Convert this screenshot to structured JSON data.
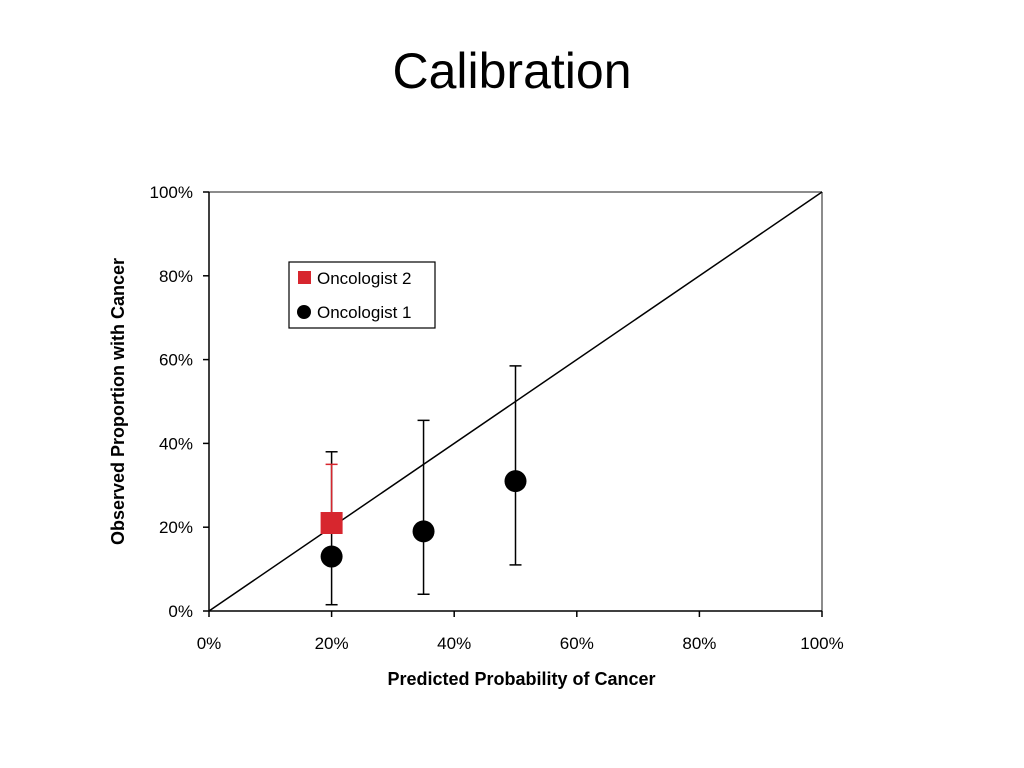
{
  "title": "Calibration",
  "chart_data": {
    "type": "scatter",
    "title": "Calibration",
    "xlabel": "Predicted Probability of Cancer",
    "ylabel": "Observed Proportion with Cancer",
    "xlim": [
      0,
      100
    ],
    "ylim": [
      0,
      100
    ],
    "x_tick_labels": [
      "0%",
      "20%",
      "40%",
      "60%",
      "80%",
      "100%"
    ],
    "y_tick_labels": [
      "0%",
      "20%",
      "40%",
      "60%",
      "80%",
      "100%"
    ],
    "grid": false,
    "legend_position": "top-left",
    "reference_line": {
      "from": [
        0,
        0
      ],
      "to": [
        100,
        100
      ]
    },
    "series": [
      {
        "name": "Oncologist 2",
        "marker": "square",
        "color": "#d7262e",
        "points": [
          {
            "x": 20,
            "y": 21,
            "err_low": 21,
            "err_high": 35
          }
        ]
      },
      {
        "name": "Oncologist 1",
        "marker": "circle",
        "color": "#000000",
        "points": [
          {
            "x": 20,
            "y": 13,
            "err_low": 1.5,
            "err_high": 38
          },
          {
            "x": 35,
            "y": 19,
            "err_low": 4,
            "err_high": 45.5
          },
          {
            "x": 50,
            "y": 31,
            "err_low": 11,
            "err_high": 58.5
          }
        ]
      }
    ]
  }
}
